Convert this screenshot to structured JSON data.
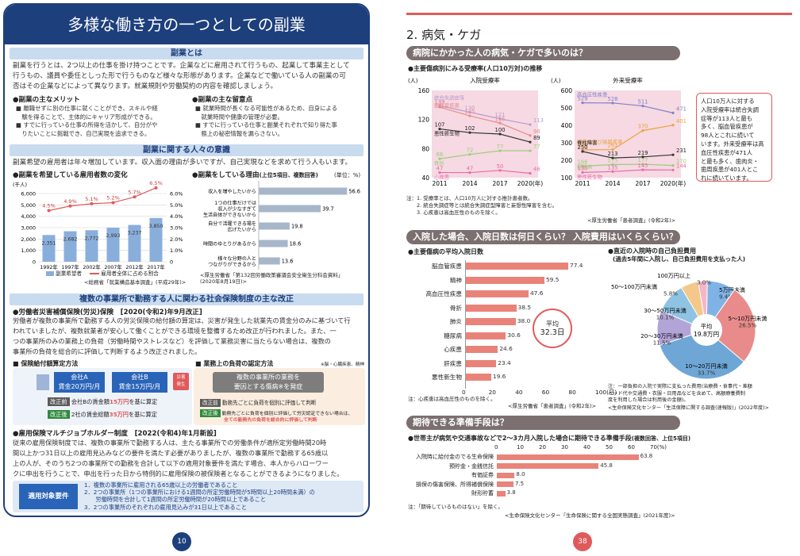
{
  "left": {
    "title": "多様な働き方の一つとしての副業",
    "sec1": {
      "heading": "副業とは",
      "para": [
        "副業を行うとは、2つ以上の仕事を掛け持つことです。企業などに雇用されて行うもの、起業して事業主として",
        "行うもの、議員や委任としった形で行うものなど様々な形態があります。企業などで働いている人の副業の可",
        "否はその企業などによって異なります。就業規則や労働契約の内容を確認しましょう。"
      ],
      "merit_title": "●副業の主なメリット",
      "merits": [
        "■ 離職せずに別の仕事に就くことができ、スキルや経",
        "　験を得ることで、主体的にキャリア形成ができる。",
        "■ すでに行っている仕事の所得を活かして、自分がや",
        "　りたいことに挑戦でき、自己実現を追求できる。"
      ],
      "demerit_title": "●副業の主な留意点",
      "demerits": [
        "■ 就業時間が長くなる可能性があるため、自身による",
        "　就業時間や健康の管理が必要。",
        "■ すでに行っている仕事と副業それぞれで知り得た事",
        "　務上の秘密情報を漏らさない。"
      ]
    },
    "sec2": {
      "heading": "副業に関する人々の意識",
      "para": "副業希望の雇用者は年々増加しています。収入面の理由が多いですが、自己実現などを求めて行う人もいます。",
      "chart1_title": "●副業を希望している雇用者数の変化",
      "chart2_title": "●副業をしている理由",
      "chart2_sub": "(上位5項目、複数回答)",
      "chart2_unit": "(単位：%)",
      "chart1_source": "<総務省「就業構造基本調査」(平成29年)>",
      "chart2_source": [
        "<厚生労働省「第132回労働政策審議会安全衛生分科会資料」",
        "(2020年8月19日)>"
      ]
    },
    "sec3": {
      "heading": "複数の事業所で勤務する人に関わる社会保険制度の主な改正",
      "item1_title": "●労働者災害補償保険(労災)保険　[2020(令和2)年9月改正]",
      "item1_para": [
        "労働者が複数の事業所で勤務する人の労災保険の給付額の算定は、災害が発生した就業先の賃金分のみに基づいて行",
        "われていましたが、複数就業者が安心して働くことができる環境を整備するため改正が行われました。また、一",
        "つの事業所のみの業務上の負荷（労働時間やストレスなど）を評価して業務災害に当たらない場合は、複数の",
        "事業所の負荷を総合的に評価して判断するよう改正されました。"
      ],
      "box1_title": "■ 保険給付額算定方法",
      "box2_title": "■ 業務上の負荷の認定方法",
      "company_a": [
        "会社A",
        "賃金20万円/月"
      ],
      "company_b": [
        "会社B",
        "賃金15万円/月"
      ],
      "injury_tag": [
        "災害",
        "発生"
      ],
      "burden_box": [
        "複数の事業所の業務を",
        "要因とする傷病※を発症"
      ],
      "note_mark": "※脳・心臓疾患、精神障害など",
      "before_tag": "改正前",
      "after_tag": "改正後",
      "box1_before_pre": "会社Bの賃金額",
      "box1_before_hl": "15万円",
      "box1_before_post": "を基に算定",
      "box1_after_pre": "2社の賃金総額",
      "box1_after_hl": "35万円",
      "box1_after_post": "を基に算定",
      "box2_before": "勤務先ごとに負荷を個別に評価して判断",
      "box2_after_l1": "勤務先ごとに負荷を個別に評価して労災認定できない場合は、",
      "box2_after_l2": "全ての勤務先の負荷を総合的に評価して判断",
      "item2_title": "●雇用保険マルチジョブホルダー制度　[2022(令和4)年1月新設]",
      "item2_para": [
        "従来の雇用保険制度では、複数の事業所で勤務する人は、主たる事業所での労働条件が適所定労働時間20時",
        "間以上かつ31日以上の雇用見込みなどの要件を満たす必要がありましたが、複数の事業所で勤務する65歳以",
        "上の人が、そのうち2つの事業所での勤務を合計して以下の適用対象要件を満たす場合、本人からハローワー",
        "クに申出を行うことで、申出を行った日から特例的に雇用保険の被保険者となることができるようになりました。"
      ],
      "req_label": "適用対象要件",
      "reqs": [
        "1．複数の事業所に雇用される65歳以上の労働者であること",
        "2．2つの事業所（1つの事業所における1週間の所定労働時間が5時間以上20時間未満）の",
        "　　労働時間を合計して1週間の所定労働時間が20時間以上であること",
        "3．2つの事業所のそれぞれの雇用見込みが31日以上であること"
      ]
    },
    "page_number": "10"
  },
  "right": {
    "title": "2. 病気・ケガ",
    "sec1_heading": "病院にかかった人の病気・ケガで多いのは？",
    "sec1_chart_title": "●主要傷病別にみる受療率(人口10万対)の推移",
    "unit_people": "(人)",
    "notes1": [
      "注：1. 受療率とは、人口10万人に対する推計患者数。",
      "　　2. 統合失調症等とは統合失調症型障害と妄想性障害を含む。",
      "　　3. 心疾患は高血圧性のものを除く。"
    ],
    "source1": "<厚生労働省「患者調査」(令和2年)>",
    "callout": [
      "人口10万人に対する",
      "入院受療率は統合失調",
      "症等が113人と最も",
      "多く、脳血管疾患が",
      "98人とこれに続いて",
      "います。外来受療率は高",
      "血圧性疾患が471人",
      "と最も多く、歯肉炎・",
      "歯周疾患が401人とこ",
      "れに続いています。"
    ],
    "sec2_heading": "入院した場合、入院日数は何日くらい？ 入院費用はいくらくらい？",
    "days_title": "●主要傷病の平均入院日数",
    "avg_label": [
      "平均",
      "32.3日"
    ],
    "days_note": "注：心疾患は高血圧性のものを除く。",
    "days_source": "<厚生労働省「患者調査」(令和2年)>",
    "cost_title": [
      "●直近の入院時の自己負担費用",
      "(過去5年間に入院し、自己負担費用を支払った人)"
    ],
    "cost_avg": [
      "平均",
      "19.8万円"
    ],
    "cost_note": [
      "注：一部負担の入院で実際に支払った費用(治療費・食事代・差額",
      "ベッド代や交通費・衣服・日用品などを含めて、高額療養費制",
      "度を利用した場合は利用後の金額)。"
    ],
    "cost_source": "<生命保険文化センター「生活保障に関する調査(速報版)」(2022年度)>",
    "sec3_heading": "期待できる準備手段は？",
    "prep_title": "●世帯主が病気や交通事故などで2～3カ月入院した場合に期待できる準備手段",
    "prep_sub": "(複数回答、上位5項目)",
    "prep_note": "注：「期待しているものはない」を除く。",
    "prep_source": "<生命保険文化センター「生命保険に関する全国実態調査」(2021年度)>",
    "page_number": "38"
  },
  "chart_data": [
    {
      "type": "bar",
      "title": "副業を希望している雇用者数の変化",
      "ylabel": "(千人)",
      "ylabel2": "(%)",
      "categories": [
        "1992年",
        "1997年",
        "2002年",
        "2007年",
        "2012年",
        "2017年"
      ],
      "series": [
        {
          "name": "副業希望者",
          "values": [
            2351,
            2682,
            2772,
            2993,
            3237,
            3850
          ]
        },
        {
          "name": "雇用者全体に占める割合",
          "type": "line",
          "values": [
            4.5,
            4.9,
            5.1,
            5.2,
            5.7,
            6.5
          ]
        }
      ],
      "yticks": [
        "6,000",
        "5,000",
        "4,000",
        "3,000",
        "2,000",
        "1,000",
        "0"
      ],
      "y2ticks": [
        "6.0%",
        "5.0%",
        "4.0%",
        "3.0%",
        "2.0%",
        "1.0%",
        "0"
      ],
      "ylim": [
        0,
        6000
      ],
      "y2lim": [
        0,
        6
      ]
    },
    {
      "type": "bar",
      "orientation": "horizontal",
      "title": "副業をしている理由",
      "categories": [
        [
          "収入を増やしたいから"
        ],
        [
          "1つの仕事だけでは",
          "収入が少なすぎて",
          "生活自体ができないから"
        ],
        [
          "自分で活躍できる場を",
          "広げたいから"
        ],
        [
          "時間のゆとりがあるから"
        ],
        [
          "様々な分野の人と",
          "つながりができるから"
        ]
      ],
      "values": [
        56.6,
        39.7,
        19.8,
        18.6,
        13.6
      ],
      "xlim": [
        0,
        60
      ]
    },
    {
      "type": "line",
      "title": "入院受療率",
      "ylabel": "(人)",
      "x": [
        "2011",
        "2014",
        "2017",
        "2020(年)"
      ],
      "ylim": [
        40,
        160
      ],
      "yticks": [
        "160",
        "120",
        "80",
        "40"
      ],
      "series": [
        {
          "name": "統合失調症等",
          "values": [
            139,
            130,
            121,
            113
          ],
          "color": "#b99bd0"
        },
        {
          "name": "脳血管疾患",
          "values": [
            137,
            125,
            115,
            98
          ],
          "color": "#e98b8b"
        },
        {
          "name": "悪性新生物",
          "values": [
            107,
            102,
            100,
            89
          ],
          "color": "#333333"
        },
        {
          "name": "骨折",
          "values": [
            66,
            72,
            77,
            77
          ],
          "color": "#9acc78"
        },
        {
          "name": "心疾患",
          "values": [
            47,
            47,
            50,
            46
          ],
          "color": "#e96aa8"
        }
      ]
    },
    {
      "type": "line",
      "title": "外来受療率",
      "ylabel": "(人)",
      "x": [
        "2011",
        "2014",
        "2017",
        "2020(年)"
      ],
      "ylim": [
        100,
        600
      ],
      "yticks": [
        "600",
        "500",
        "400",
        "300",
        "200",
        "100"
      ],
      "series": [
        {
          "name": "高血圧性疾患",
          "values": [
            529,
            528,
            511,
            471
          ],
          "color": "#7d82c7"
        },
        {
          "name": "歯肉炎及び歯周疾患",
          "values": [
            259,
            261,
            370,
            401
          ],
          "color": "#f0a040"
        },
        {
          "name": "糖尿病",
          "values": [
            166,
            175,
            177,
            170
          ],
          "color": "#9acc78"
        },
        {
          "name": "悪性新生物",
          "values": [
            130,
            135,
            145,
            144
          ],
          "color": "#e96aa8"
        },
        {
          "name": "脊柱障害",
          "values": [
            250,
            213,
            219,
            231
          ],
          "color": "#333333"
        }
      ]
    },
    {
      "type": "bar",
      "orientation": "horizontal",
      "title": "主要傷病の平均入院日数",
      "categories": [
        "脳血管疾患",
        "精神",
        "高血圧性疾患",
        "骨折",
        "肺炎",
        "糖尿病",
        "心疾患",
        "肝疾患",
        "悪性新生物"
      ],
      "values": [
        77.4,
        59.5,
        47.6,
        38.5,
        38.0,
        30.6,
        24.6,
        23.4,
        19.6
      ],
      "xticks": [
        "0",
        "20",
        "40",
        "60",
        "80",
        "100(日)"
      ],
      "xlim": [
        0,
        100
      ]
    },
    {
      "type": "pie",
      "title": "直近の入院時の自己負担費用",
      "categories": [
        "5万円未満",
        "5～10万円未満",
        "10～20万円未満",
        "20～30万円未満",
        "30～50万円未満",
        "50～100万円未満",
        "100万円以上"
      ],
      "values": [
        9.4,
        26.5,
        33.7,
        11.5,
        10.1,
        5.8,
        3.0
      ]
    },
    {
      "type": "bar",
      "orientation": "horizontal",
      "title": "世帯主が病気や交通事故などで2～3カ月入院した場合に期待できる準備手段",
      "categories": [
        "入院時に給付金のでる生命保険",
        "預貯金・金銭信託",
        "有価証券",
        "損保の傷害保険、所得補償保険",
        "財形貯蓄"
      ],
      "values": [
        63.8,
        45.8,
        8.0,
        7.5,
        3.8
      ],
      "xticks": [
        "0",
        "10",
        "20",
        "30",
        "40",
        "50",
        "60",
        "70(%)"
      ],
      "xlim": [
        0,
        70
      ]
    }
  ],
  "colors": {
    "navy": "#1d3f7c",
    "accent_red": "#e05a5a",
    "bar_salmon": "#e9837a",
    "section_gray": "#7b6f70",
    "pink_bg": "#f6d9e2"
  }
}
